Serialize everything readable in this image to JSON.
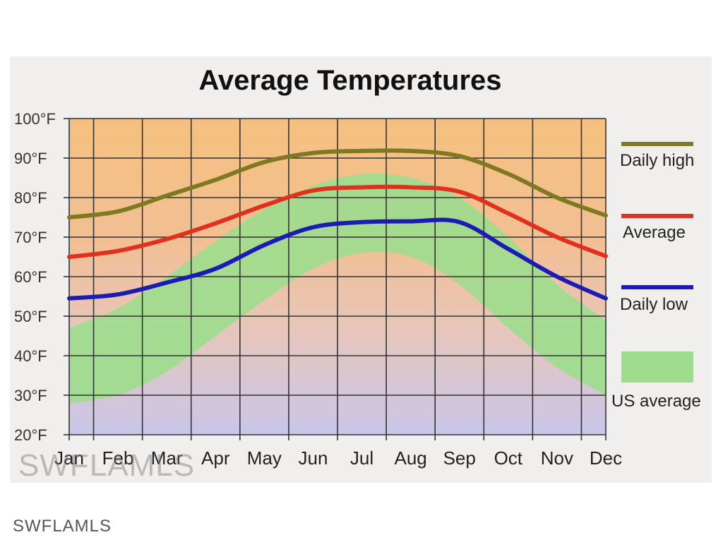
{
  "colors": {
    "background_warm": "#f5c07e",
    "background_mid": "#ebc6b6",
    "background_cool": "#c8c5ea",
    "us_band": "#9edc8e",
    "daily_high": "#7f7a22",
    "average": "#e0301e",
    "daily_low": "#1c1cb4",
    "grid": "#333333"
  },
  "watermark": {
    "text": "SWFLAMLS"
  },
  "chart_data": {
    "type": "line",
    "title": "Average Temperatures",
    "categories": [
      "Jan",
      "Feb",
      "Mar",
      "Apr",
      "May",
      "Jun",
      "Jul",
      "Aug",
      "Sep",
      "Oct",
      "Nov",
      "Dec"
    ],
    "ylim": [
      20,
      100
    ],
    "yticks": [
      "20°F",
      "30°F",
      "40°F",
      "50°F",
      "60°F",
      "70°F",
      "80°F",
      "90°F",
      "100°F"
    ],
    "grid": true,
    "legend_position": "right",
    "series": [
      {
        "name": "Daily high",
        "color": "#7f7a22",
        "values": [
          75,
          76.5,
          80.5,
          84.5,
          89,
          91.3,
          91.8,
          91.8,
          90.5,
          86,
          80,
          75.5
        ]
      },
      {
        "name": "Average",
        "color": "#e0301e",
        "values": [
          65,
          66.5,
          69.5,
          73.5,
          78,
          81.8,
          82.6,
          82.6,
          81.5,
          76,
          70,
          65.2
        ]
      },
      {
        "name": "Daily low",
        "color": "#1c1cb4",
        "values": [
          54.5,
          55.5,
          58.5,
          62,
          68,
          72.5,
          73.8,
          74,
          73.8,
          67,
          60,
          54.5
        ]
      }
    ],
    "us_average": {
      "name": "US average",
      "high": [
        47,
        52,
        60,
        69,
        77,
        83,
        86,
        85,
        80,
        70,
        58,
        49
      ],
      "low": [
        28,
        30,
        36,
        45,
        54,
        62,
        66,
        65,
        58,
        47,
        37,
        30
      ]
    }
  }
}
